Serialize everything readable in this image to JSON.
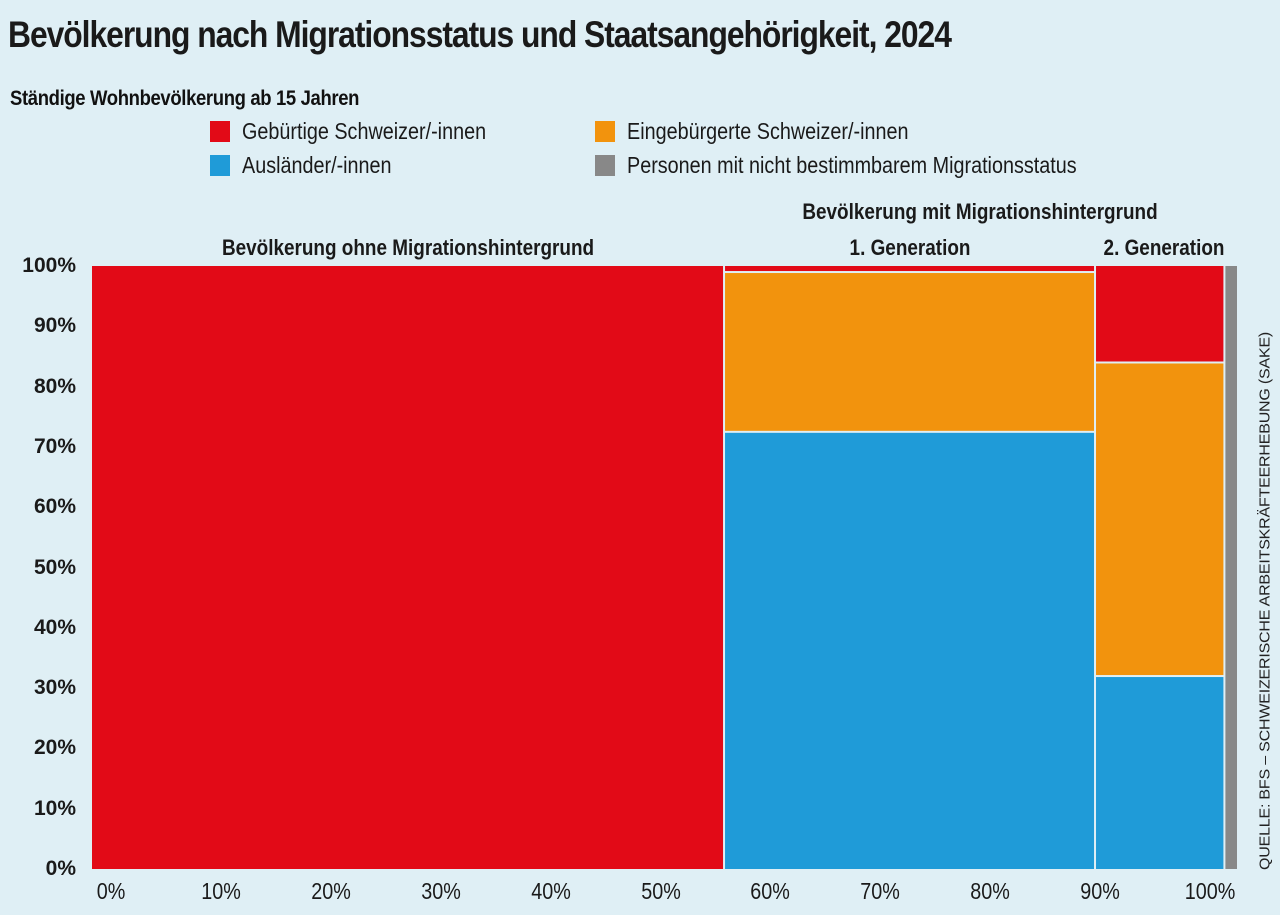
{
  "chart_data": {
    "type": "mosaic",
    "title": "Bevölkerung nach Migrationsstatus und Staatsangehörigkeit, 2024",
    "subtitle": "Ständige Wohnbevölkerung ab 15 Jahren",
    "source": "QUELLE: BFS – SCHWEIZERISCHE ARBEITSKRÄFTEERHEBUNG (SAKE)",
    "xlim": [
      0,
      100
    ],
    "ylim": [
      0,
      100
    ],
    "x_ticks": [
      "0%",
      "10%",
      "20%",
      "30%",
      "40%",
      "50%",
      "60%",
      "70%",
      "80%",
      "90%",
      "100%"
    ],
    "y_ticks": [
      "0%",
      "10%",
      "20%",
      "30%",
      "40%",
      "50%",
      "60%",
      "70%",
      "80%",
      "90%",
      "100%"
    ],
    "legend": [
      {
        "key": "gebuertig",
        "label": "Gebürtige Schweizer/-innen",
        "color": "#e20a17"
      },
      {
        "key": "eingebuergert",
        "label": "Eingebürgerte Schweizer/-innen",
        "color": "#f2930d"
      },
      {
        "key": "auslaender",
        "label": "Ausländer/-innen",
        "color": "#1f9bd8"
      },
      {
        "key": "unbestimmt",
        "label": "Personen mit nicht bestimmbarem Migrationsstatus",
        "color": "#888888"
      }
    ],
    "group_labels": {
      "ohne": "Bevölkerung ohne Migrationshintergrund",
      "mit": "Bevölkerung mit Migrationshintergrund",
      "gen1": "1. Generation",
      "gen2": "2. Generation"
    },
    "columns": [
      {
        "name": "Bevölkerung ohne Migrationshintergrund",
        "width": 55.2,
        "segments": [
          {
            "key": "gebuertig",
            "value": 100
          }
        ]
      },
      {
        "name": "1. Generation",
        "width": 32.4,
        "segments": [
          {
            "key": "auslaender",
            "value": 72.5
          },
          {
            "key": "eingebuergert",
            "value": 26.5
          },
          {
            "key": "gebuertig",
            "value": 1.0
          }
        ]
      },
      {
        "name": "2. Generation",
        "width": 11.3,
        "segments": [
          {
            "key": "auslaender",
            "value": 32.0
          },
          {
            "key": "eingebuergert",
            "value": 52.0
          },
          {
            "key": "gebuertig",
            "value": 16.0
          }
        ]
      },
      {
        "name": "Nicht bestimmbar",
        "width": 1.1,
        "segments": [
          {
            "key": "unbestimmt",
            "value": 100
          }
        ]
      }
    ]
  }
}
